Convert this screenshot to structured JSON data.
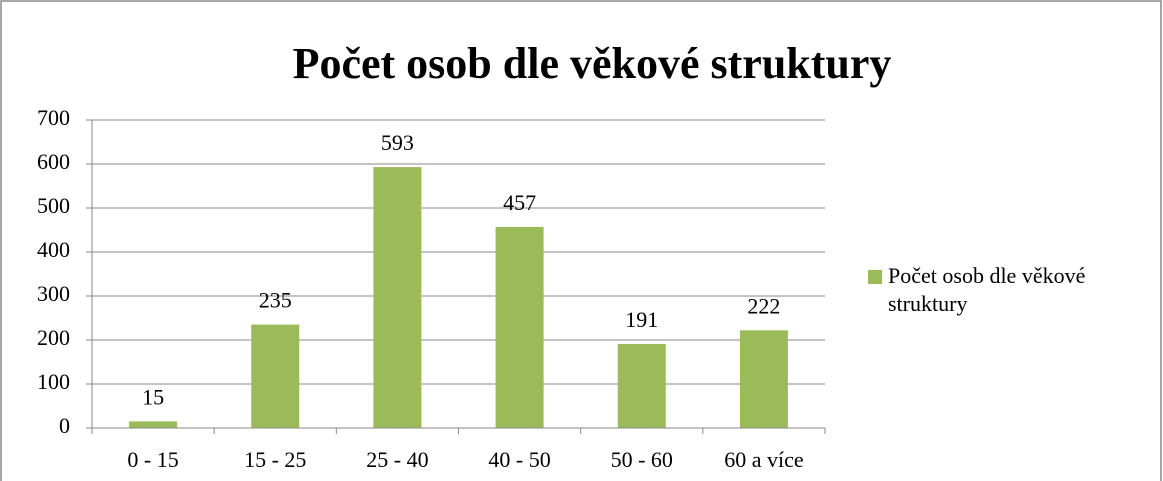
{
  "chart_data": {
    "type": "bar",
    "title": "Počet osob dle věkové struktury",
    "categories": [
      "0 - 15",
      "15 - 25",
      "25 - 40",
      "40 - 50",
      "50 - 60",
      "60 a více"
    ],
    "series": [
      {
        "name": "Počet osob dle věkové struktury",
        "color": "#9bbb59",
        "values": [
          15,
          235,
          593,
          457,
          191,
          222
        ]
      }
    ],
    "ylim": [
      0,
      700
    ],
    "yticks": [
      0,
      100,
      200,
      300,
      400,
      500,
      600,
      700
    ],
    "grid": true,
    "legend": "right"
  }
}
